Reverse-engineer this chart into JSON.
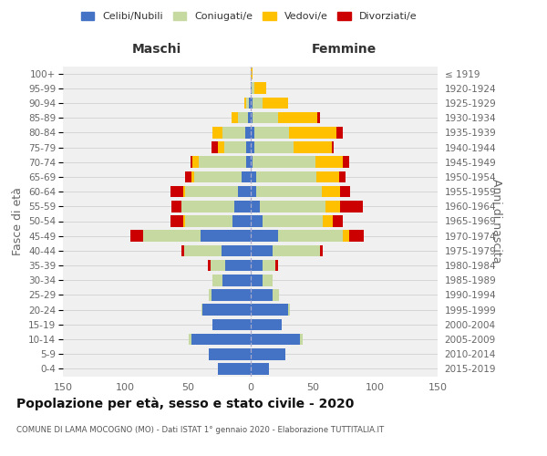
{
  "age_groups": [
    "0-4",
    "5-9",
    "10-14",
    "15-19",
    "20-24",
    "25-29",
    "30-34",
    "35-39",
    "40-44",
    "45-49",
    "50-54",
    "55-59",
    "60-64",
    "65-69",
    "70-74",
    "75-79",
    "80-84",
    "85-89",
    "90-94",
    "95-99",
    "100+"
  ],
  "birth_years": [
    "2015-2019",
    "2010-2014",
    "2005-2009",
    "2000-2004",
    "1995-1999",
    "1990-1994",
    "1985-1989",
    "1980-1984",
    "1975-1979",
    "1970-1974",
    "1965-1969",
    "1960-1964",
    "1955-1959",
    "1950-1954",
    "1945-1949",
    "1940-1944",
    "1935-1939",
    "1930-1934",
    "1925-1929",
    "1920-1924",
    "≤ 1919"
  ],
  "colors": {
    "celibi": "#4472c4",
    "coniugati": "#c5d9a0",
    "vedovi": "#ffc000",
    "divorziati": "#cc0000"
  },
  "males": {
    "celibi": [
      26,
      33,
      47,
      30,
      38,
      31,
      22,
      20,
      23,
      40,
      14,
      13,
      10,
      7,
      3,
      3,
      4,
      2,
      1,
      0,
      0
    ],
    "coniugati": [
      0,
      0,
      2,
      0,
      1,
      2,
      8,
      12,
      30,
      46,
      38,
      42,
      42,
      38,
      38,
      18,
      18,
      8,
      2,
      0,
      0
    ],
    "vedovi": [
      0,
      0,
      0,
      0,
      0,
      0,
      0,
      0,
      0,
      0,
      2,
      0,
      2,
      2,
      5,
      5,
      8,
      5,
      2,
      0,
      0
    ],
    "divorziati": [
      0,
      0,
      0,
      0,
      0,
      0,
      0,
      2,
      2,
      10,
      10,
      8,
      10,
      5,
      2,
      5,
      0,
      0,
      0,
      0,
      0
    ]
  },
  "females": {
    "celibi": [
      15,
      28,
      40,
      25,
      30,
      18,
      10,
      10,
      18,
      22,
      10,
      8,
      5,
      5,
      2,
      3,
      3,
      2,
      2,
      1,
      0
    ],
    "coniugati": [
      0,
      0,
      2,
      0,
      2,
      5,
      8,
      10,
      38,
      52,
      48,
      52,
      52,
      48,
      50,
      32,
      28,
      20,
      8,
      2,
      0
    ],
    "vedovi": [
      0,
      0,
      0,
      0,
      0,
      0,
      0,
      0,
      0,
      5,
      8,
      12,
      15,
      18,
      22,
      30,
      38,
      32,
      20,
      10,
      2
    ],
    "divorziati": [
      0,
      0,
      0,
      0,
      0,
      0,
      0,
      2,
      2,
      12,
      8,
      18,
      8,
      5,
      5,
      2,
      5,
      2,
      0,
      0,
      0
    ]
  },
  "xlim": 150,
  "title": "Popolazione per età, sesso e stato civile - 2020",
  "subtitle": "COMUNE DI LAMA MOCOGNO (MO) - Dati ISTAT 1° gennaio 2020 - Elaborazione TUTTITALIA.IT",
  "ylabel_left": "Fasce di età",
  "ylabel_right": "Anni di nascita",
  "xlabel_maschi": "Maschi",
  "xlabel_femmine": "Femmine",
  "legend_labels": [
    "Celibi/Nubili",
    "Coniugati/e",
    "Vedovi/e",
    "Divorziati/e"
  ],
  "bg_color": "#f0f0f0",
  "grid_color": "#cccccc",
  "center_line_color": "#aaaacc",
  "tick_color": "#666666"
}
